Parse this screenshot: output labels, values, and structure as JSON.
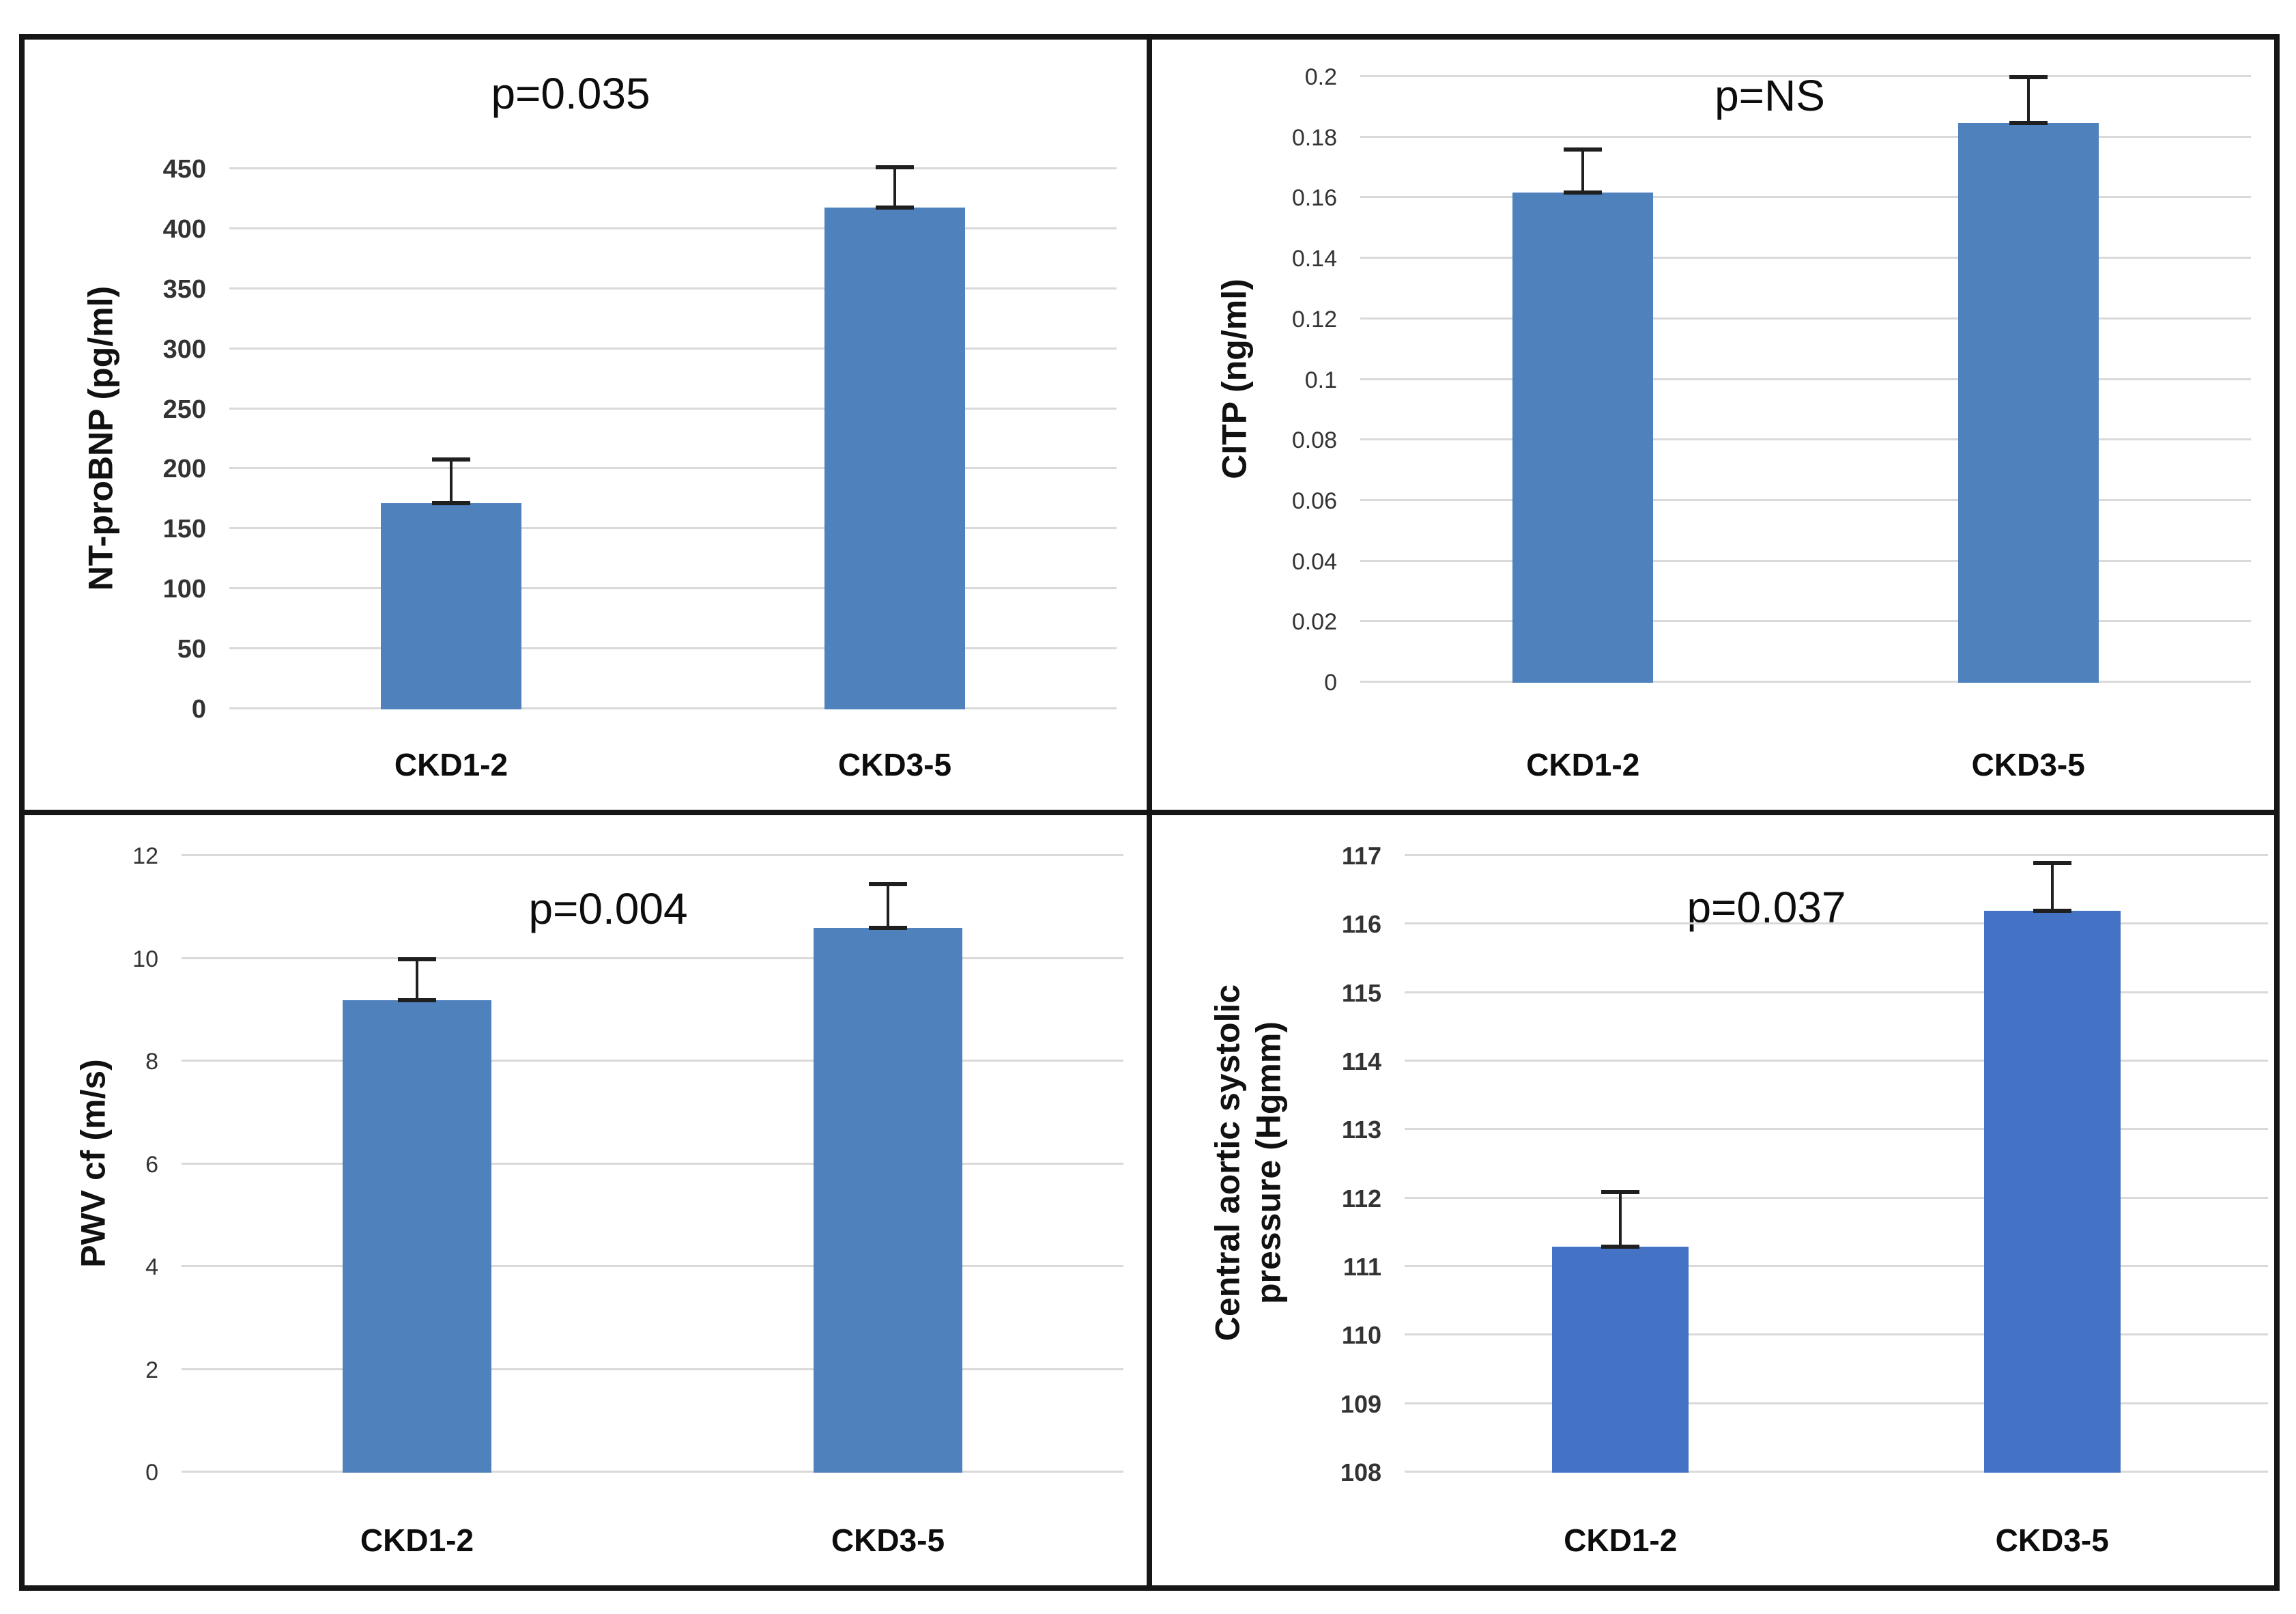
{
  "figure": {
    "background": "#ffffff",
    "border_color": "#161616",
    "gridline_color": "#d9d9d9",
    "error_bar_color": "#1f1f1f"
  },
  "chart_data": [
    {
      "type": "bar",
      "p_label": "p=0.035",
      "ylabel": "NT-proBNP (pg/ml)",
      "ylabel_lines": [
        "NT-proBNP (pg/ml)"
      ],
      "categories": [
        "CKD1-2",
        "CKD3-5"
      ],
      "values": [
        172,
        418
      ],
      "error_plus": [
        36,
        34
      ],
      "ymin": 0,
      "ymax": 450,
      "yticks": [
        0,
        50,
        100,
        150,
        200,
        250,
        300,
        350,
        400,
        450
      ],
      "ytick_labels": [
        "0",
        "50",
        "100",
        "150",
        "200",
        "250",
        "300",
        "350",
        "400",
        "450"
      ],
      "bar_color": "#4f81bd",
      "grid": true,
      "legend": null
    },
    {
      "type": "bar",
      "p_label": "p=NS",
      "ylabel": "CITP (ng/ml)",
      "ylabel_lines": [
        "CITP (ng/ml)"
      ],
      "categories": [
        "CKD1-2",
        "CKD3-5"
      ],
      "values": [
        0.162,
        0.185
      ],
      "error_plus": [
        0.014,
        0.015
      ],
      "ymin": 0,
      "ymax": 0.2,
      "yticks": [
        0,
        0.02,
        0.04,
        0.06,
        0.08,
        0.1,
        0.12,
        0.14,
        0.16,
        0.18,
        0.2
      ],
      "ytick_labels": [
        "0",
        "0.02",
        "0.04",
        "0.06",
        "0.08",
        "0.1",
        "0.12",
        "0.14",
        "0.16",
        "0.18",
        "0.2"
      ],
      "bar_color": "#4f81bd",
      "grid": true,
      "legend": null
    },
    {
      "type": "bar",
      "p_label": "p=0.004",
      "ylabel": "PWV cf (m/s)",
      "ylabel_lines": [
        "PWV cf (m/s)"
      ],
      "categories": [
        "CKD1-2",
        "CKD3-5"
      ],
      "values": [
        9.2,
        10.6
      ],
      "error_plus": [
        0.8,
        0.85
      ],
      "ymin": 0,
      "ymax": 12,
      "yticks": [
        0,
        2,
        4,
        6,
        8,
        10,
        12
      ],
      "ytick_labels": [
        "0",
        "2",
        "4",
        "6",
        "8",
        "10",
        "12"
      ],
      "bar_color": "#4f81bd",
      "grid": true,
      "legend": null
    },
    {
      "type": "bar",
      "p_label": "p=0.037",
      "ylabel": "Central aortic systolic pressure (Hgmm)",
      "ylabel_lines": [
        "Central aortic systolic",
        "pressure (Hgmm)"
      ],
      "categories": [
        "CKD1-2",
        "CKD3-5"
      ],
      "values": [
        111.3,
        116.2
      ],
      "error_plus": [
        0.8,
        0.7
      ],
      "ymin": 108,
      "ymax": 117,
      "yticks": [
        108,
        109,
        110,
        111,
        112,
        113,
        114,
        115,
        116,
        117
      ],
      "ytick_labels": [
        "108",
        "109",
        "110",
        "111",
        "112",
        "113",
        "114",
        "115",
        "116",
        "117"
      ],
      "bar_color": "#4472c4",
      "grid": true,
      "legend": null
    }
  ]
}
